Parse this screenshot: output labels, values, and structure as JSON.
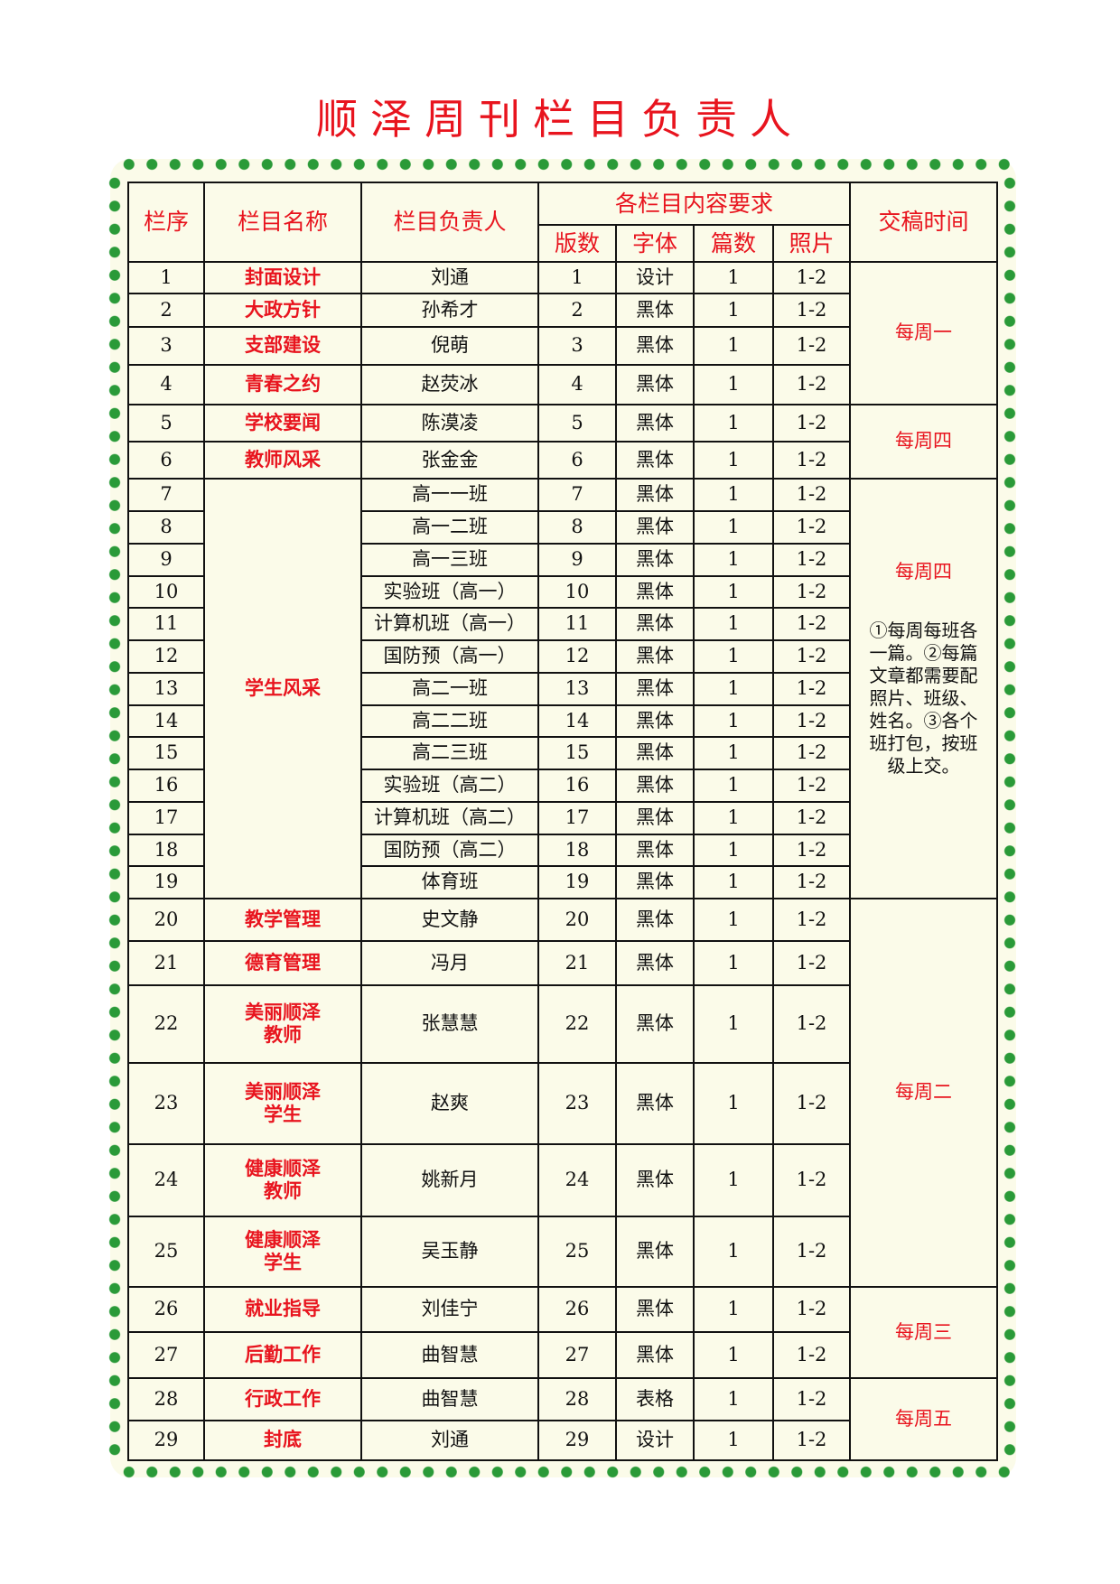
{
  "title": "顺泽周刊栏目负责人",
  "colors": {
    "accent_red": "#e8141e",
    "dot_green": "#2a9a38",
    "panel_bg": "#fbfbe9"
  },
  "headers": {
    "seq": "栏序",
    "name": "栏目名称",
    "owner": "栏目负责人",
    "requirements": "各栏目内容要求",
    "pages": "版数",
    "font": "字体",
    "articles": "篇数",
    "photos": "照片",
    "deadline": "交稿时间"
  },
  "rows": [
    {
      "seq": "1",
      "name": "封面设计",
      "owner": "刘通",
      "pages": "1",
      "font": "设计",
      "articles": "1",
      "photos": "1-2"
    },
    {
      "seq": "2",
      "name": "大政方针",
      "owner": "孙希才",
      "pages": "2",
      "font": "黑体",
      "articles": "1",
      "photos": "1-2"
    },
    {
      "seq": "3",
      "name": "支部建设",
      "owner": "倪萌",
      "pages": "3",
      "font": "黑体",
      "articles": "1",
      "photos": "1-2"
    },
    {
      "seq": "4",
      "name": "青春之约",
      "owner": "赵荧冰",
      "pages": "4",
      "font": "黑体",
      "articles": "1",
      "photos": "1-2"
    },
    {
      "seq": "5",
      "name": "学校要闻",
      "owner": "陈漠凌",
      "pages": "5",
      "font": "黑体",
      "articles": "1",
      "photos": "1-2"
    },
    {
      "seq": "6",
      "name": "教师风采",
      "owner": "张金金",
      "pages": "6",
      "font": "黑体",
      "articles": "1",
      "photos": "1-2"
    },
    {
      "seq": "7",
      "name": "学生风采",
      "owner": "高一一班",
      "pages": "7",
      "font": "黑体",
      "articles": "1",
      "photos": "1-2"
    },
    {
      "seq": "8",
      "owner": "高一二班",
      "pages": "8",
      "font": "黑体",
      "articles": "1",
      "photos": "1-2"
    },
    {
      "seq": "9",
      "owner": "高一三班",
      "pages": "9",
      "font": "黑体",
      "articles": "1",
      "photos": "1-2"
    },
    {
      "seq": "10",
      "owner": "实验班（高一）",
      "pages": "10",
      "font": "黑体",
      "articles": "1",
      "photos": "1-2"
    },
    {
      "seq": "11",
      "owner": "计算机班（高一）",
      "pages": "11",
      "font": "黑体",
      "articles": "1",
      "photos": "1-2"
    },
    {
      "seq": "12",
      "owner": "国防预（高一）",
      "pages": "12",
      "font": "黑体",
      "articles": "1",
      "photos": "1-2"
    },
    {
      "seq": "13",
      "owner": "高二一班",
      "pages": "13",
      "font": "黑体",
      "articles": "1",
      "photos": "1-2"
    },
    {
      "seq": "14",
      "owner": "高二二班",
      "pages": "14",
      "font": "黑体",
      "articles": "1",
      "photos": "1-2"
    },
    {
      "seq": "15",
      "owner": "高二三班",
      "pages": "15",
      "font": "黑体",
      "articles": "1",
      "photos": "1-2"
    },
    {
      "seq": "16",
      "owner": "实验班（高二）",
      "pages": "16",
      "font": "黑体",
      "articles": "1",
      "photos": "1-2"
    },
    {
      "seq": "17",
      "owner": "计算机班（高二）",
      "pages": "17",
      "font": "黑体",
      "articles": "1",
      "photos": "1-2"
    },
    {
      "seq": "18",
      "owner": "国防预（高二）",
      "pages": "18",
      "font": "黑体",
      "articles": "1",
      "photos": "1-2"
    },
    {
      "seq": "19",
      "owner": "体育班",
      "pages": "19",
      "font": "黑体",
      "articles": "1",
      "photos": "1-2"
    },
    {
      "seq": "20",
      "name": "教学管理",
      "owner": "史文静",
      "pages": "20",
      "font": "黑体",
      "articles": "1",
      "photos": "1-2"
    },
    {
      "seq": "21",
      "name": "德育管理",
      "owner": "冯月",
      "pages": "21",
      "font": "黑体",
      "articles": "1",
      "photos": "1-2"
    },
    {
      "seq": "22",
      "name": "美丽顺泽教师",
      "owner": "张慧慧",
      "pages": "22",
      "font": "黑体",
      "articles": "1",
      "photos": "1-2"
    },
    {
      "seq": "23",
      "name": "美丽顺泽学生",
      "owner": "赵爽",
      "pages": "23",
      "font": "黑体",
      "articles": "1",
      "photos": "1-2"
    },
    {
      "seq": "24",
      "name": "健康顺泽教师",
      "owner": "姚新月",
      "pages": "24",
      "font": "黑体",
      "articles": "1",
      "photos": "1-2"
    },
    {
      "seq": "25",
      "name": "健康顺泽学生",
      "owner": "吴玉静",
      "pages": "25",
      "font": "黑体",
      "articles": "1",
      "photos": "1-2"
    },
    {
      "seq": "26",
      "name": "就业指导",
      "owner": "刘佳宁",
      "pages": "26",
      "font": "黑体",
      "articles": "1",
      "photos": "1-2"
    },
    {
      "seq": "27",
      "name": "后勤工作",
      "owner": "曲智慧",
      "pages": "27",
      "font": "黑体",
      "articles": "1",
      "photos": "1-2"
    },
    {
      "seq": "28",
      "name": "行政工作",
      "owner": "曲智慧",
      "pages": "28",
      "font": "表格",
      "articles": "1",
      "photos": "1-2"
    },
    {
      "seq": "29",
      "name": "封底",
      "owner": "刘通",
      "pages": "29",
      "font": "设计",
      "articles": "1",
      "photos": "1-2"
    }
  ],
  "deadlines": [
    {
      "label": "每周一"
    },
    {
      "label": "每周四"
    },
    {
      "label": "每周四",
      "note": "①每周每班各一篇。②每篇文章都需要配照片、班级、姓名。③各个班打包，按班级上交。"
    },
    {
      "label": "每周二"
    },
    {
      "label": "每周三"
    },
    {
      "label": "每周五"
    }
  ]
}
